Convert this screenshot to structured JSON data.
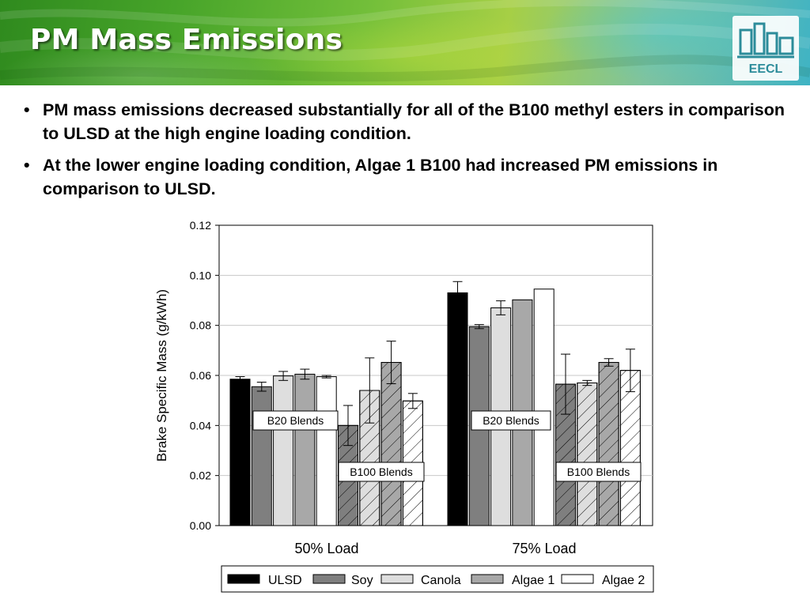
{
  "slide": {
    "title": "PM Mass Emissions",
    "logo_text": "EECL",
    "bullets": [
      "PM mass emissions decreased substantially for all of the B100 methyl esters in comparison to ULSD at the high engine loading condition.",
      "At the lower engine loading condition, Algae 1 B100 had increased PM emissions in comparison to ULSD."
    ],
    "bullet_symbol": "•"
  },
  "chart_data": {
    "type": "bar",
    "title": "",
    "xlabel": "",
    "ylabel": "Brake Specific Mass (g/kWh)",
    "ylim": [
      0,
      0.12
    ],
    "yticks": [
      "0.00",
      "0.02",
      "0.04",
      "0.06",
      "0.08",
      "0.10",
      "0.12"
    ],
    "grid": true,
    "legend_position": "bottom",
    "categories": [
      "50% Load",
      "75% Load"
    ],
    "group_labels": [
      "B20 Blends",
      "B100 Blends"
    ],
    "series": [
      {
        "name": "ULSD",
        "fill": "#000000",
        "hatch": false,
        "values": [
          0.0585,
          0.093
        ],
        "errors": [
          0.001,
          0.0045
        ]
      },
      {
        "name": "Soy",
        "fill": "#7f7f7f",
        "hatch": false,
        "values": [
          0.0555,
          0.0795
        ],
        "errors": [
          0.0018,
          0.0008
        ]
      },
      {
        "name": "Canola",
        "fill": "#dedede",
        "hatch": false,
        "values": [
          0.0598,
          0.087
        ],
        "errors": [
          0.0018,
          0.0028
        ]
      },
      {
        "name": "Algae 1",
        "fill": "#a8a8a8",
        "hatch": false,
        "values": [
          0.0605,
          0.0902
        ],
        "errors": [
          0.002,
          0
        ]
      },
      {
        "name": "Algae 2",
        "fill": "#ffffff",
        "hatch": false,
        "values": [
          0.0595,
          0.0945
        ],
        "errors": [
          0.0005,
          0
        ]
      },
      {
        "name": "Soy",
        "fill": "#7f7f7f",
        "hatch": true,
        "in_legend": false,
        "values": [
          0.04,
          0.0565
        ],
        "errors": [
          0.008,
          0.012
        ]
      },
      {
        "name": "Canola",
        "fill": "#dedede",
        "hatch": true,
        "in_legend": false,
        "values": [
          0.054,
          0.057
        ],
        "errors": [
          0.013,
          0.001
        ]
      },
      {
        "name": "Algae 1",
        "fill": "#a8a8a8",
        "hatch": true,
        "in_legend": false,
        "values": [
          0.0652,
          0.0652
        ],
        "errors": [
          0.0085,
          0.0015
        ]
      },
      {
        "name": "Algae 2",
        "fill": "#ffffff",
        "hatch": true,
        "in_legend": false,
        "values": [
          0.0498,
          0.062
        ],
        "errors": [
          0.003,
          0.0085
        ]
      }
    ]
  }
}
